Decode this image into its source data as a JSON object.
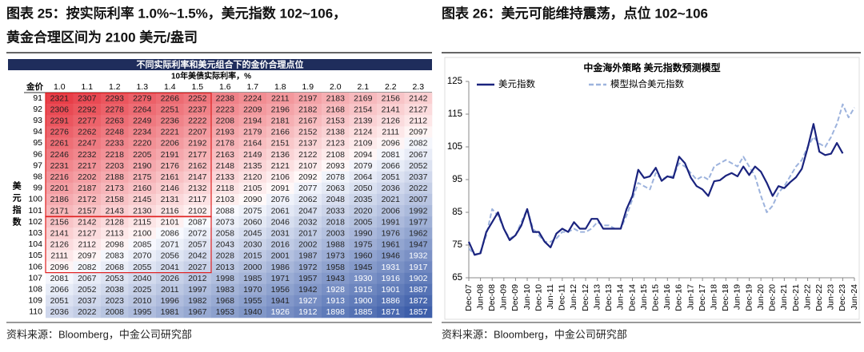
{
  "left_title": [
    "图表 25：按实际利率 1.0%~1.5%，美元指数 102~106，",
    "黄金合理区间为 2100 美元/盎司"
  ],
  "right_title": "图表 26：美元可能维持震荡，点位 102~106",
  "sources": [
    "资料来源：Bloomberg，中金公司研究部",
    "资料来源：Bloomberg，中金公司研究部"
  ],
  "table": {
    "title": "不同实际利率和美元组合下的金价合理点位",
    "column_group_label": "10年美债实际利率，%",
    "corner_label": "金价",
    "row_group_label": "美元指数",
    "columns": [
      "1.0",
      "1.1",
      "1.2",
      "1.3",
      "1.4",
      "1.5",
      "1.6",
      "1.7",
      "1.8",
      "1.9",
      "2.0",
      "2.1",
      "2.2",
      "2.3"
    ],
    "rows": [
      {
        "label": 91,
        "values": [
          2321,
          2307,
          2293,
          2279,
          2266,
          2252,
          2238,
          2224,
          2211,
          2197,
          2183,
          2169,
          2156,
          2142
        ]
      },
      {
        "label": 92,
        "values": [
          2306,
          2292,
          2278,
          2264,
          2251,
          2237,
          2223,
          2209,
          2196,
          2182,
          2168,
          2154,
          2141,
          2127
        ]
      },
      {
        "label": 93,
        "values": [
          2291,
          2277,
          2263,
          2249,
          2236,
          2222,
          2208,
          2194,
          2181,
          2167,
          2153,
          2139,
          2126,
          2112
        ]
      },
      {
        "label": 94,
        "values": [
          2276,
          2262,
          2248,
          2234,
          2221,
          2207,
          2193,
          2179,
          2166,
          2152,
          2138,
          2124,
          2111,
          2097
        ]
      },
      {
        "label": 95,
        "values": [
          2261,
          2247,
          2233,
          2220,
          2206,
          2192,
          2178,
          2164,
          2151,
          2137,
          2123,
          2109,
          2096,
          2082
        ]
      },
      {
        "label": 96,
        "values": [
          2246,
          2232,
          2218,
          2205,
          2191,
          2177,
          2163,
          2149,
          2136,
          2122,
          2108,
          2094,
          2081,
          2067
        ]
      },
      {
        "label": 97,
        "values": [
          2231,
          2217,
          2203,
          2190,
          2176,
          2162,
          2148,
          2135,
          2121,
          2107,
          2093,
          2079,
          2066,
          2052
        ]
      },
      {
        "label": 98,
        "values": [
          2216,
          2202,
          2188,
          2175,
          2161,
          2147,
          2133,
          2120,
          2106,
          2092,
          2078,
          2064,
          2051,
          2037
        ]
      },
      {
        "label": 99,
        "values": [
          2201,
          2187,
          2173,
          2160,
          2146,
          2132,
          2118,
          2105,
          2091,
          2077,
          2063,
          2050,
          2036,
          2022
        ]
      },
      {
        "label": 100,
        "values": [
          2186,
          2172,
          2158,
          2145,
          2131,
          2117,
          2103,
          2090,
          2076,
          2062,
          2048,
          2035,
          2021,
          2007
        ]
      },
      {
        "label": 101,
        "values": [
          2171,
          2157,
          2143,
          2130,
          2116,
          2102,
          2088,
          2075,
          2061,
          2047,
          2033,
          2020,
          2006,
          1992
        ]
      },
      {
        "label": 102,
        "values": [
          2156,
          2142,
          2128,
          2115,
          2101,
          2087,
          2073,
          2060,
          2046,
          2032,
          2018,
          2005,
          1991,
          1977
        ]
      },
      {
        "label": 103,
        "values": [
          2141,
          2127,
          2113,
          2100,
          2086,
          2072,
          2058,
          2045,
          2031,
          2017,
          2003,
          1990,
          1976,
          1962
        ]
      },
      {
        "label": 104,
        "values": [
          2126,
          2112,
          2098,
          2085,
          2071,
          2057,
          2043,
          2030,
          2016,
          2002,
          1988,
          1975,
          1961,
          1947
        ]
      },
      {
        "label": 105,
        "values": [
          2111,
          2097,
          2083,
          2070,
          2056,
          2042,
          2028,
          2015,
          2001,
          1987,
          1973,
          1960,
          1946,
          1932
        ]
      },
      {
        "label": 106,
        "values": [
          2096,
          2082,
          2068,
          2055,
          2041,
          2027,
          2013,
          2000,
          1986,
          1972,
          1958,
          1945,
          1931,
          1917
        ]
      },
      {
        "label": 107,
        "values": [
          2081,
          2067,
          2053,
          2040,
          2026,
          2012,
          1998,
          1985,
          1971,
          1957,
          1943,
          1930,
          1916,
          1902
        ]
      },
      {
        "label": 108,
        "values": [
          2066,
          2052,
          2038,
          2025,
          2011,
          1997,
          1983,
          1970,
          1956,
          1942,
          1928,
          1915,
          1901,
          1887
        ]
      },
      {
        "label": 109,
        "values": [
          2051,
          2037,
          2023,
          2010,
          1996,
          1982,
          1968,
          1955,
          1941,
          1927,
          1913,
          1900,
          1886,
          1872
        ]
      },
      {
        "label": 110,
        "values": [
          2036,
          2022,
          2008,
          1995,
          1981,
          1967,
          1953,
          1940,
          1926,
          1912,
          1898,
          1885,
          1871,
          1857
        ]
      }
    ]
  },
  "chart_data": {
    "type": "line",
    "title": "中金海外策略 美元指数预测模型",
    "categories": [
      "Dec-07",
      null,
      "Jun-08",
      null,
      "Dec-08",
      null,
      "Jun-09",
      null,
      "Dec-09",
      null,
      "Jun-10",
      null,
      "Dec-10",
      null,
      "Jun-11",
      null,
      "Dec-11",
      null,
      "Jun-12",
      null,
      "Dec-12",
      null,
      "Jun-13",
      null,
      "Dec-13",
      null,
      "Jun-14",
      null,
      "Dec-14",
      null,
      "Jun-15",
      null,
      "Dec-15",
      null,
      "Jun-16",
      null,
      "Dec-16",
      null,
      "Jun-17",
      null,
      "Dec-17",
      null,
      "Jun-18",
      null,
      "Dec-18",
      null,
      "Jun-19",
      null,
      "Dec-19",
      null,
      "Jun-20",
      null,
      "Dec-20",
      null,
      "Jun-21",
      null,
      "Dec-21",
      null,
      "Jun-22",
      null,
      "Dec-22",
      null,
      "Jun-23",
      null,
      "Dec-23",
      null,
      "Jun-24"
    ],
    "series": [
      {
        "name": "美元指数",
        "color": "#1a237e",
        "dashed": false,
        "values": [
          76,
          72,
          72.5,
          79,
          82,
          85,
          80,
          76.5,
          78,
          81,
          86,
          79,
          79,
          76,
          74.3,
          78.5,
          80,
          79,
          82,
          80,
          80,
          83,
          83,
          80,
          80,
          80,
          80,
          86,
          90,
          98,
          95.5,
          96,
          98.6,
          94.6,
          96,
          95.5,
          102,
          100,
          95.6,
          93,
          92,
          90,
          94.5,
          94.8,
          96.2,
          97,
          96,
          99,
          96.4,
          99,
          97.4,
          94,
          90,
          93,
          92.4,
          94.2,
          95.7,
          98.3,
          104.7,
          112,
          103.5,
          102.5,
          102.9,
          106.2,
          103,
          null,
          null
        ]
      },
      {
        "name": "模型拟合美元指数",
        "color": "#9db3dd",
        "dashed": true,
        "values": [
          74,
          72,
          73,
          78,
          86,
          84,
          80,
          77,
          78,
          82,
          86,
          80,
          78,
          76,
          76,
          77,
          79,
          79,
          80,
          79,
          79,
          80,
          82,
          81,
          81,
          80,
          80,
          84,
          89,
          94,
          93,
          92,
          97,
          95,
          96,
          96,
          100,
          99,
          97,
          95,
          96,
          95,
          99,
          100,
          101,
          100,
          99,
          102,
          99,
          96,
          90,
          85,
          87,
          91,
          93,
          96,
          99,
          101,
          105,
          108,
          106,
          105,
          108,
          112,
          118,
          114,
          117
        ]
      }
    ],
    "ylim": [
      65,
      125
    ],
    "yticks": [
      65,
      75,
      85,
      95,
      105,
      115,
      125
    ],
    "legend": "top-left"
  }
}
